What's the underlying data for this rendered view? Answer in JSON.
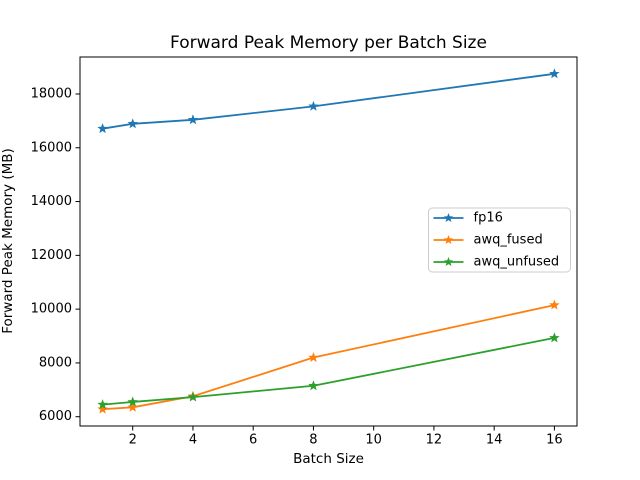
{
  "chart_data": {
    "type": "line",
    "title": "Forward Peak Memory per Batch Size",
    "xlabel": "Batch Size",
    "ylabel": "Forward Peak Memory (MB)",
    "x": [
      1,
      2,
      4,
      8,
      16
    ],
    "series": [
      {
        "name": "fp16",
        "color": "#1f77b4",
        "values": [
          16710,
          16890,
          17040,
          17540,
          18750
        ]
      },
      {
        "name": "awq_fused",
        "color": "#ff7f0e",
        "values": [
          6280,
          6350,
          6760,
          8200,
          10150
        ]
      },
      {
        "name": "awq_unfused",
        "color": "#2ca02c",
        "values": [
          6450,
          6550,
          6730,
          7150,
          8930
        ]
      }
    ],
    "marker": "star",
    "xticks": [
      2,
      4,
      6,
      8,
      10,
      12,
      14,
      16
    ],
    "yticks": [
      6000,
      8000,
      10000,
      12000,
      14000,
      16000,
      18000
    ],
    "xlim": [
      0.25,
      16.75
    ],
    "ylim": [
      5655,
      19375
    ],
    "grid": false,
    "legend": {
      "position": "center right",
      "entries": [
        "fp16",
        "awq_fused",
        "awq_unfused"
      ]
    },
    "colors": {
      "spine": "#000000",
      "background": "#ffffff",
      "legend_border": "#cccccc"
    }
  }
}
